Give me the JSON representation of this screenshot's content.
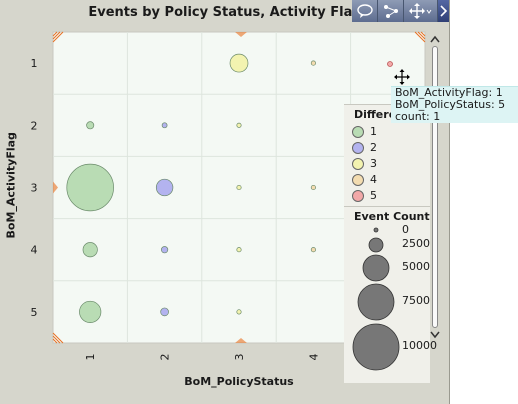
{
  "window": {
    "title": "Events by Policy Status, Activity Flag"
  },
  "toolbar": {
    "buttons": [
      {
        "name": "comment",
        "icon": "comment-icon"
      },
      {
        "name": "network",
        "icon": "network-icon"
      },
      {
        "name": "zoom",
        "icon": "move-arrows-icon"
      },
      {
        "name": "more",
        "icon": "chevron-right-icon"
      }
    ]
  },
  "chart_data": {
    "type": "scatter",
    "title": "Events by Policy Status, Activity Flag",
    "xlabel": "BoM_PolicyStatus",
    "ylabel": "BoM_ActivityFlag",
    "x_categories": [
      "1",
      "2",
      "3",
      "4",
      "5"
    ],
    "y_categories": [
      "1",
      "2",
      "3",
      "4",
      "5"
    ],
    "visible_x_ticks": [
      "1",
      "2",
      "3",
      "4"
    ],
    "grid": true,
    "color_legend": {
      "title": "Differe",
      "entries": [
        {
          "label": "1",
          "color": "#b9dcb4"
        },
        {
          "label": "2",
          "color": "#b3b3ef"
        },
        {
          "label": "3",
          "color": "#f3f3b0"
        },
        {
          "label": "4",
          "color": "#f3dcb0"
        },
        {
          "label": "5",
          "color": "#f2a8a8"
        }
      ]
    },
    "size_legend": {
      "title": "Event Count",
      "entries": [
        0,
        2500,
        5000,
        7500,
        10000
      ],
      "labels": [
        "0",
        "2500",
        "5000",
        "7500",
        "10000"
      ]
    },
    "points": [
      {
        "x": "3",
        "y": "1",
        "count": 1400,
        "difference": 3
      },
      {
        "x": "4",
        "y": "1",
        "count": 60,
        "difference": 4
      },
      {
        "x": "5",
        "y": "1",
        "count": 1,
        "difference": 5
      },
      {
        "x": "1",
        "y": "2",
        "count": 230,
        "difference": 1
      },
      {
        "x": "2",
        "y": "2",
        "count": 110,
        "difference": 2
      },
      {
        "x": "3",
        "y": "2",
        "count": 60,
        "difference": 3
      },
      {
        "x": "1",
        "y": "3",
        "count": 9500,
        "difference": 1
      },
      {
        "x": "2",
        "y": "3",
        "count": 1200,
        "difference": 2
      },
      {
        "x": "3",
        "y": "3",
        "count": 60,
        "difference": 3
      },
      {
        "x": "4",
        "y": "3",
        "count": 60,
        "difference": 4
      },
      {
        "x": "1",
        "y": "4",
        "count": 900,
        "difference": 1
      },
      {
        "x": "2",
        "y": "4",
        "count": 180,
        "difference": 2
      },
      {
        "x": "3",
        "y": "4",
        "count": 60,
        "difference": 3
      },
      {
        "x": "4",
        "y": "4",
        "count": 30,
        "difference": 4
      },
      {
        "x": "1",
        "y": "5",
        "count": 2000,
        "difference": 1
      },
      {
        "x": "2",
        "y": "5",
        "count": 270,
        "difference": 2
      },
      {
        "x": "3",
        "y": "5",
        "count": 60,
        "difference": 3
      }
    ],
    "colors": {
      "plot_bg": "#f4f9f4",
      "frame_bg": "#d6d6cc",
      "accent": "#e87020"
    }
  },
  "tooltip": {
    "line1": "BoM_ActivityFlag: 1",
    "line2": "BoM_PolicyStatus: 5",
    "line3": "count: 1"
  }
}
